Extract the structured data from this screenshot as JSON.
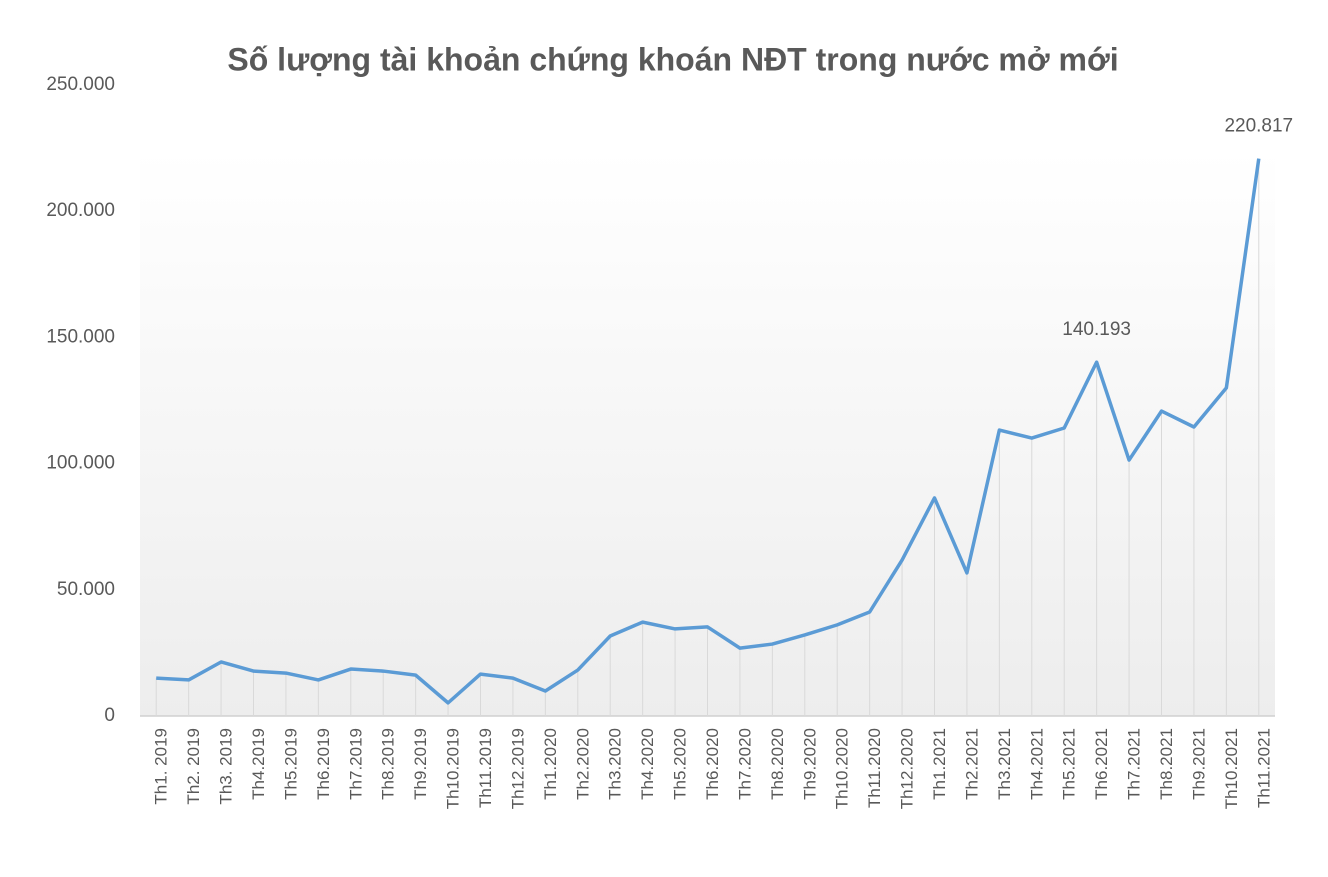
{
  "chart_data": {
    "type": "line",
    "title": "Số lượng tài khoản chứng khoán NĐT trong nước mở mới",
    "categories": [
      "Th1. 2019",
      "Th2. 2019",
      "Th3. 2019",
      "Th4.2019",
      "Th5.2019",
      "Th6.2019",
      "Th7.2019",
      "Th8.2019",
      "Th9.2019",
      "Th10.2019",
      "Th11.2019",
      "Th12.2019",
      "Th1.2020",
      "Th2.2020",
      "Th3.2020",
      "Th4.2020",
      "Th5.2020",
      "Th6.2020",
      "Th7.2020",
      "Th8.2020",
      "Th9.2020",
      "Th10.2020",
      "Th11.2020",
      "Th12.2020",
      "Th1.2021",
      "Th2.2021",
      "Th3.2021",
      "Th4.2021",
      "Th5.2021",
      "Th6.2021",
      "Th7.2021",
      "Th8.2021",
      "Th9.2021",
      "Th10.2021",
      "Th11.2021"
    ],
    "values": [
      15000,
      14300,
      21400,
      17800,
      17000,
      14300,
      18600,
      17800,
      16200,
      5200,
      16600,
      15000,
      9900,
      18200,
      31700,
      37200,
      34500,
      35300,
      26900,
      28500,
      32100,
      36100,
      41200,
      61800,
      86400,
      56700,
      113300,
      110100,
      114100,
      140193,
      101400,
      120800,
      114500,
      130000,
      220817
    ],
    "value_labels": [
      null,
      null,
      null,
      null,
      null,
      null,
      null,
      null,
      null,
      null,
      null,
      null,
      null,
      null,
      null,
      null,
      null,
      null,
      null,
      null,
      null,
      null,
      null,
      null,
      null,
      null,
      null,
      null,
      null,
      "140.193",
      null,
      null,
      null,
      null,
      "220.817"
    ],
    "color": "#5b9bd5",
    "ylim": [
      0,
      250000
    ],
    "yticks": [
      0,
      {
        "value": 50000,
        "label": "50.000"
      },
      {
        "value": 100000,
        "label": "100.000"
      },
      {
        "value": 150000,
        "label": "150.000"
      },
      {
        "value": 200000,
        "label": "200.000"
      },
      {
        "value": 250000,
        "label": "250.000"
      }
    ]
  }
}
